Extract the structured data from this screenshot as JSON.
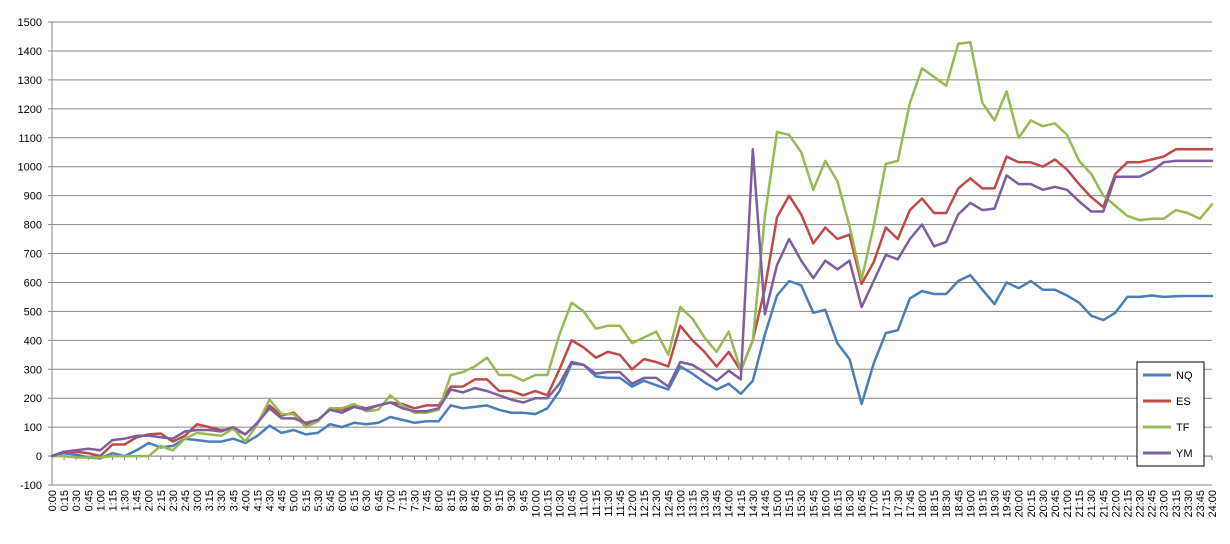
{
  "chart_data": {
    "type": "line",
    "title": "",
    "xlabel": "",
    "ylabel": "",
    "ylim": [
      -100,
      1500
    ],
    "yticks": [
      -100,
      0,
      100,
      200,
      300,
      400,
      500,
      600,
      700,
      800,
      900,
      1000,
      1100,
      1200,
      1300,
      1400,
      1500
    ],
    "grid": "horizontal",
    "legend_position": "right",
    "categories": [
      "0:00",
      "0:15",
      "0:30",
      "0:45",
      "1:00",
      "1:15",
      "1:30",
      "1:45",
      "2:00",
      "2:15",
      "2:30",
      "2:45",
      "3:00",
      "3:15",
      "3:30",
      "3:45",
      "4:00",
      "4:15",
      "4:30",
      "4:45",
      "5:00",
      "5:15",
      "5:30",
      "5:45",
      "6:00",
      "6:15",
      "6:30",
      "6:45",
      "7:00",
      "7:15",
      "7:30",
      "7:45",
      "8:00",
      "8:15",
      "8:30",
      "8:45",
      "9:00",
      "9:15",
      "9:30",
      "9:45",
      "10:00",
      "10:15",
      "10:30",
      "10:45",
      "11:00",
      "11:15",
      "11:30",
      "11:45",
      "12:00",
      "12:15",
      "12:30",
      "12:45",
      "13:00",
      "13:15",
      "13:30",
      "13:45",
      "14:00",
      "14:15",
      "14:30",
      "14:45",
      "15:00",
      "15:15",
      "15:30",
      "15:45",
      "16:00",
      "16:15",
      "16:30",
      "16:45",
      "17:00",
      "17:15",
      "17:30",
      "17:45",
      "18:00",
      "18:15",
      "18:30",
      "18:45",
      "19:00",
      "19:15",
      "19:30",
      "19:45",
      "20:00",
      "20:15",
      "20:30",
      "20:45",
      "21:00",
      "21:15",
      "21:30",
      "21:45",
      "22:00",
      "22:15",
      "22:30",
      "22:45",
      "23:00",
      "23:15",
      "23:30",
      "23:45",
      "24:00"
    ],
    "series": [
      {
        "name": "NQ",
        "color": "#4a7ebb",
        "values": [
          0,
          10,
          5,
          -5,
          -8,
          10,
          0,
          20,
          45,
          30,
          35,
          60,
          55,
          50,
          50,
          60,
          45,
          70,
          105,
          80,
          90,
          75,
          80,
          110,
          100,
          115,
          110,
          115,
          135,
          125,
          115,
          120,
          120,
          175,
          165,
          170,
          175,
          160,
          150,
          150,
          145,
          165,
          225,
          320,
          315,
          275,
          270,
          270,
          240,
          260,
          245,
          230,
          310,
          285,
          255,
          230,
          250,
          215,
          260,
          420,
          555,
          605,
          590,
          495,
          505,
          390,
          335,
          180,
          320,
          425,
          435,
          545,
          570,
          560,
          560,
          605,
          625,
          575,
          525,
          600,
          580,
          605,
          575,
          575,
          555,
          530,
          485,
          470,
          495,
          550,
          550,
          555,
          550,
          552,
          553,
          553,
          553
        ]
      },
      {
        "name": "ES",
        "color": "#be4b48",
        "values": [
          0,
          15,
          15,
          10,
          0,
          40,
          40,
          65,
          75,
          78,
          50,
          70,
          110,
          100,
          90,
          95,
          75,
          115,
          175,
          140,
          150,
          110,
          120,
          165,
          160,
          175,
          165,
          175,
          185,
          180,
          165,
          175,
          175,
          240,
          240,
          265,
          265,
          225,
          225,
          210,
          225,
          210,
          300,
          400,
          375,
          340,
          360,
          350,
          300,
          335,
          325,
          310,
          450,
          400,
          360,
          310,
          360,
          295,
          400,
          580,
          825,
          900,
          835,
          735,
          790,
          750,
          765,
          595,
          670,
          790,
          750,
          850,
          890,
          840,
          840,
          925,
          960,
          925,
          925,
          1035,
          1015,
          1015,
          1000,
          1025,
          990,
          940,
          895,
          860,
          975,
          1015,
          1015,
          1025,
          1035,
          1060,
          1060,
          1060,
          1060
        ]
      },
      {
        "name": "TF",
        "color": "#98b954",
        "values": [
          0,
          0,
          -5,
          -5,
          -5,
          0,
          0,
          0,
          0,
          35,
          20,
          60,
          80,
          75,
          70,
          95,
          50,
          110,
          195,
          145,
          145,
          100,
          120,
          165,
          165,
          180,
          155,
          160,
          210,
          175,
          150,
          150,
          160,
          280,
          290,
          310,
          340,
          280,
          280,
          260,
          280,
          280,
          420,
          530,
          500,
          440,
          450,
          450,
          390,
          410,
          430,
          350,
          515,
          475,
          410,
          360,
          430,
          295,
          400,
          830,
          1120,
          1110,
          1050,
          920,
          1020,
          950,
          795,
          610,
          795,
          1010,
          1020,
          1220,
          1340,
          1310,
          1280,
          1425,
          1430,
          1220,
          1160,
          1260,
          1100,
          1160,
          1140,
          1150,
          1110,
          1020,
          975,
          900,
          865,
          830,
          815,
          820,
          820,
          850,
          840,
          820,
          870
        ]
      },
      {
        "name": "YM",
        "color": "#7d5fa0",
        "values": [
          0,
          15,
          20,
          25,
          20,
          55,
          60,
          70,
          70,
          65,
          60,
          85,
          90,
          90,
          85,
          100,
          75,
          115,
          165,
          130,
          130,
          115,
          125,
          160,
          150,
          170,
          160,
          175,
          185,
          165,
          155,
          155,
          165,
          230,
          220,
          235,
          225,
          210,
          195,
          185,
          200,
          200,
          250,
          325,
          315,
          285,
          290,
          290,
          250,
          270,
          270,
          240,
          325,
          315,
          290,
          260,
          295,
          265,
          1060,
          490,
          660,
          750,
          675,
          615,
          675,
          645,
          675,
          515,
          605,
          695,
          680,
          750,
          800,
          725,
          740,
          835,
          875,
          850,
          855,
          970,
          940,
          940,
          920,
          930,
          920,
          880,
          845,
          845,
          965,
          965,
          965,
          985,
          1015,
          1020,
          1020,
          1020,
          1020
        ]
      }
    ]
  }
}
